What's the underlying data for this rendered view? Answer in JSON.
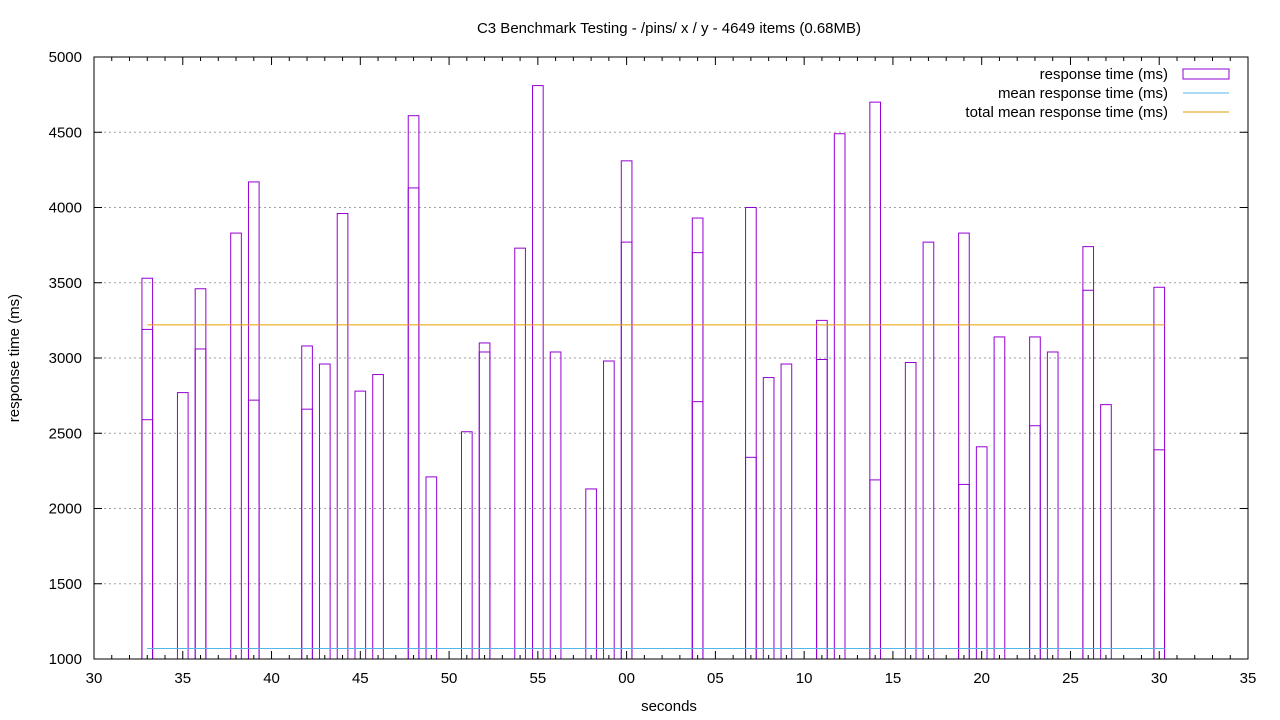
{
  "chart_data": {
    "type": "bar",
    "title": "C3 Benchmark Testing - /pins/ x / y  - 4649 items (0.68MB)",
    "xlabel": "seconds",
    "ylabel": "response time (ms)",
    "xlim": [
      30,
      95
    ],
    "ylim": [
      1000,
      5000
    ],
    "x_ticks": [
      30,
      35,
      40,
      45,
      50,
      55,
      60,
      65,
      70,
      75,
      80,
      85,
      90,
      95
    ],
    "x_tick_labels": [
      "30",
      "35",
      "40",
      "45",
      "50",
      "55",
      "00",
      "05",
      "10",
      "15",
      "20",
      "25",
      "30",
      "35"
    ],
    "y_ticks": [
      1000,
      1500,
      2000,
      2500,
      3000,
      3500,
      4000,
      4500,
      5000
    ],
    "y_tick_labels": [
      "1000",
      "1500",
      "2000",
      "2500",
      "3000",
      "3500",
      "4000",
      "4500",
      "5000"
    ],
    "grid": true,
    "legend_position": "top-right",
    "colors": {
      "bars": "#9400d3",
      "mean": "#56b4e9",
      "total_mean": "#e69f00"
    },
    "series": [
      {
        "name": "response time (ms)",
        "style": "boxes",
        "points": [
          {
            "x": 33,
            "values": [
              2590,
              3190,
              3530
            ]
          },
          {
            "x": 35,
            "values": [
              2770
            ]
          },
          {
            "x": 36,
            "values": [
              3060,
              3460
            ]
          },
          {
            "x": 38,
            "values": [
              3830
            ]
          },
          {
            "x": 39,
            "values": [
              2720,
              4170
            ]
          },
          {
            "x": 42,
            "values": [
              2660,
              3080
            ]
          },
          {
            "x": 43,
            "values": [
              2960
            ]
          },
          {
            "x": 44,
            "values": [
              3960
            ]
          },
          {
            "x": 45,
            "values": [
              2780
            ]
          },
          {
            "x": 46,
            "values": [
              2890
            ]
          },
          {
            "x": 48,
            "values": [
              4130,
              4610
            ]
          },
          {
            "x": 49,
            "values": [
              2210
            ]
          },
          {
            "x": 51,
            "values": [
              2510
            ]
          },
          {
            "x": 52,
            "values": [
              3040,
              3100
            ]
          },
          {
            "x": 54,
            "values": [
              3730
            ]
          },
          {
            "x": 55,
            "values": [
              4810
            ]
          },
          {
            "x": 56,
            "values": [
              3040
            ]
          },
          {
            "x": 58,
            "values": [
              2130
            ]
          },
          {
            "x": 59,
            "values": [
              2980
            ]
          },
          {
            "x": 60,
            "values": [
              3770,
              4310
            ]
          },
          {
            "x": 64,
            "values": [
              2710,
              3700,
              3930
            ]
          },
          {
            "x": 67,
            "values": [
              2340,
              4000
            ]
          },
          {
            "x": 68,
            "values": [
              2870
            ]
          },
          {
            "x": 69,
            "values": [
              2960
            ]
          },
          {
            "x": 71,
            "values": [
              2990,
              3250
            ]
          },
          {
            "x": 72,
            "values": [
              4490
            ]
          },
          {
            "x": 74,
            "values": [
              2190,
              4700
            ]
          },
          {
            "x": 76,
            "values": [
              2970
            ]
          },
          {
            "x": 77,
            "values": [
              3770
            ]
          },
          {
            "x": 79,
            "values": [
              2160,
              3830
            ]
          },
          {
            "x": 80,
            "values": [
              2410
            ]
          },
          {
            "x": 81,
            "values": [
              3140
            ]
          },
          {
            "x": 83,
            "values": [
              2550,
              3140
            ]
          },
          {
            "x": 84,
            "values": [
              3040
            ]
          },
          {
            "x": 86,
            "values": [
              3450,
              3740
            ]
          },
          {
            "x": 87,
            "values": [
              2690
            ]
          },
          {
            "x": 90,
            "values": [
              2390,
              3470
            ]
          }
        ]
      },
      {
        "name": "mean response time (ms)",
        "style": "line",
        "x": [
          33,
          90.3
        ],
        "y": [
          1070,
          1070
        ]
      },
      {
        "name": "total mean response time (ms)",
        "style": "line",
        "x": [
          33,
          90.3
        ],
        "y": [
          3220,
          3220
        ]
      }
    ]
  }
}
